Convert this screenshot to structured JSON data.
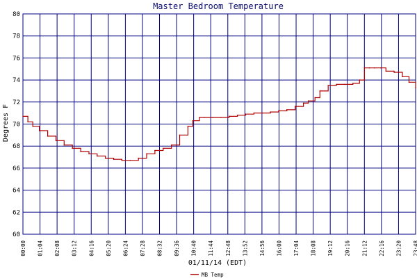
{
  "chart_data": {
    "type": "line",
    "title": "Master Bedroom Temperature",
    "xlabel": "01/11/14 (EDT)",
    "ylabel": "Degrees F",
    "ylim": [
      60,
      80
    ],
    "yticks": [
      "60",
      "62",
      "64",
      "66",
      "68",
      "70",
      "72",
      "74",
      "76",
      "78",
      "80"
    ],
    "xlim_hours": [
      0,
      23.8
    ],
    "xticks": [
      "00:00",
      "01:04",
      "02:08",
      "03:12",
      "04:16",
      "05:20",
      "06:24",
      "07:28",
      "08:32",
      "09:36",
      "10:40",
      "11:44",
      "12:48",
      "13:52",
      "14:56",
      "16:00",
      "17:04",
      "18:08",
      "19:12",
      "20:16",
      "21:12",
      "22:16",
      "23:20",
      "23:48"
    ],
    "grid": true,
    "legend_position": "bottom-left",
    "colors": {
      "series": "#b00000",
      "grid": "#000080",
      "title": "#0a0a6e",
      "background": "#ffffff"
    },
    "series": [
      {
        "name": "MB Temp",
        "x_hours": [
          0,
          0.3,
          0.6,
          1.0,
          1.5,
          2.0,
          2.5,
          3.0,
          3.5,
          4.0,
          4.5,
          5.0,
          5.5,
          6.0,
          6.5,
          7.0,
          7.5,
          8.0,
          8.5,
          9.0,
          9.5,
          10.0,
          10.3,
          10.7,
          11.0,
          11.5,
          12.0,
          12.5,
          13.0,
          13.5,
          14.0,
          14.5,
          15.0,
          15.5,
          16.0,
          16.5,
          17.0,
          17.3,
          17.7,
          18.0,
          18.5,
          19.0,
          19.5,
          20.0,
          20.4,
          20.7,
          21.0,
          21.3,
          21.7,
          22.0,
          22.5,
          23.0,
          23.4,
          23.8
        ],
        "values": [
          70.7,
          70.2,
          69.8,
          69.4,
          68.9,
          68.5,
          68.1,
          67.8,
          67.5,
          67.3,
          67.1,
          66.9,
          66.8,
          66.7,
          66.7,
          66.9,
          67.3,
          67.6,
          67.8,
          68.1,
          69.0,
          69.8,
          70.3,
          70.6,
          70.6,
          70.6,
          70.6,
          70.7,
          70.8,
          70.9,
          71.0,
          71.0,
          71.1,
          71.2,
          71.3,
          71.6,
          71.9,
          72.1,
          72.4,
          73.0,
          73.5,
          73.6,
          73.6,
          73.7,
          74.0,
          75.1,
          75.1,
          75.1,
          75.1,
          74.8,
          74.7,
          74.3,
          73.8,
          73.3
        ]
      }
    ]
  }
}
